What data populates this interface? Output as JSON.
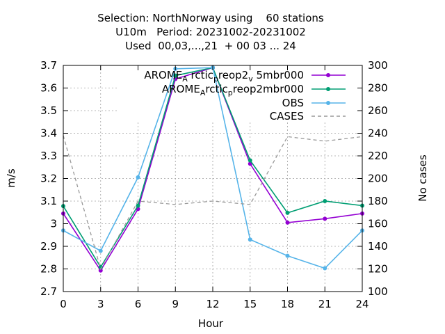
{
  "chart_data": {
    "type": "line",
    "title_lines": [
      "Selection: NorthNorway using    60 stations",
      "U10m   Period: 20231002-20231002",
      "Used  00,03,...,21  + 00 03 ... 24"
    ],
    "xlabel": "Hour",
    "ylabel": "m/s",
    "y2label": "No cases",
    "x": [
      0,
      3,
      6,
      9,
      12,
      15,
      18,
      21,
      24
    ],
    "xlim": [
      0,
      24
    ],
    "ylim": [
      2.7,
      3.7
    ],
    "y2lim": [
      100,
      300
    ],
    "x_ticks": [
      "0",
      "3",
      "6",
      "9",
      "12",
      "15",
      "18",
      "21",
      "24"
    ],
    "y_ticks": [
      "2.7",
      "2.8",
      "2.9",
      "3",
      "3.1",
      "3.2",
      "3.3",
      "3.4",
      "3.5",
      "3.6",
      "3.7"
    ],
    "y2_ticks": [
      "100",
      "120",
      "140",
      "160",
      "180",
      "200",
      "220",
      "240",
      "260",
      "280",
      "300"
    ],
    "grid": true,
    "legend_position": "top-right",
    "series": [
      {
        "name": "AROME_Arctic_prreop2_v5mbr000",
        "legend_main": [
          "AROME",
          " rctic",
          "reop2",
          " 5mbr000"
        ],
        "legend_sub": [
          "A",
          "p",
          "v"
        ],
        "color": "#9400d3",
        "axis": "y",
        "style": "solid",
        "values": [
          3.045,
          2.793,
          3.065,
          3.64,
          3.69,
          3.265,
          3.005,
          3.022,
          3.045
        ]
      },
      {
        "name": "AROME_Arctic_prreop2mbr000",
        "legend_main": [
          "AROME",
          "rctic",
          "reop2mbr000"
        ],
        "legend_sub": [
          "A",
          "p"
        ],
        "color": "#009e73",
        "axis": "y",
        "style": "solid",
        "values": [
          3.078,
          2.808,
          3.08,
          3.655,
          3.69,
          3.28,
          3.048,
          3.1,
          3.08
        ]
      },
      {
        "name": "OBS",
        "color": "#56b4e9",
        "axis": "y",
        "style": "solid",
        "values": [
          2.97,
          2.88,
          3.205,
          3.685,
          3.69,
          2.93,
          2.858,
          2.803,
          2.97
        ]
      },
      {
        "name": "CASES",
        "color": "#999999",
        "axis": "y2",
        "style": "dashed",
        "values": [
          238,
          120,
          180,
          177,
          180,
          177,
          237,
          233,
          237
        ]
      }
    ]
  }
}
